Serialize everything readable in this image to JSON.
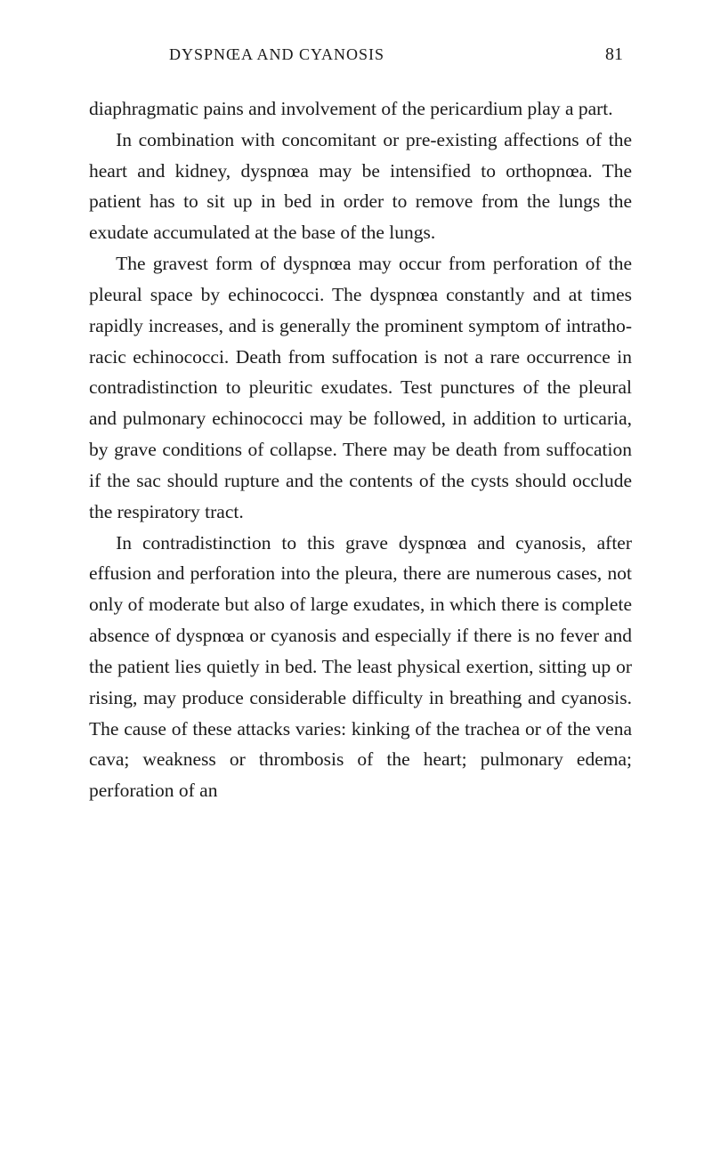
{
  "header": {
    "running_title": "DYSPNŒA AND CYANOSIS",
    "page_number": "81"
  },
  "paragraphs": {
    "p1": "diaphragmatic pains and involvement of the pericar­dium play a part.",
    "p2": "In combination with concomitant or pre-existing af­fections of the heart and kidney, dyspnœa may be in­tensified to orthopnœa. The patient has to sit up in bed in order to remove from the lungs the exudate accumulated at the base of the lungs.",
    "p3": "The gravest form of dyspnœa may occur from per­foration of the pleural space by echinococci. The dyspnœa constantly and at times rapidly increases, and is generally the prominent symptom of intratho­racic echinococci. Death from suffocation is not a rare occurrence in contradistinction to pleuritic exudates. Test punctures of the pleural and pulmonary echino­cocci may be followed, in addition to urticaria, by grave conditions of collapse. There may be death from suffocation if the sac should rupture and the contents of the cysts should occlude the respiratory tract.",
    "p4": "In contradistinction to this grave dyspnœa and cya­nosis, after effusion and perforation into the pleura, there are numerous cases, not only of moderate but also of large exudates, in which there is complete ab­sence of dyspnœa or cyanosis and especially if there is no fever and the patient lies quietly in bed. The least physical exertion, sitting up or rising, may pro­duce considerable difficulty in breathing and cyanosis. The cause of these attacks varies: kinking of the trachea or of the vena cava; weakness or thrombosis of the heart; pulmonary edema; perforation of an"
  },
  "styling": {
    "background_color": "#ffffff",
    "text_color": "#1a1a1a",
    "body_font_size": 21.5,
    "header_font_size": 18,
    "page_number_font_size": 20,
    "line_height": 1.62,
    "font_family": "Georgia, Times New Roman, serif"
  }
}
